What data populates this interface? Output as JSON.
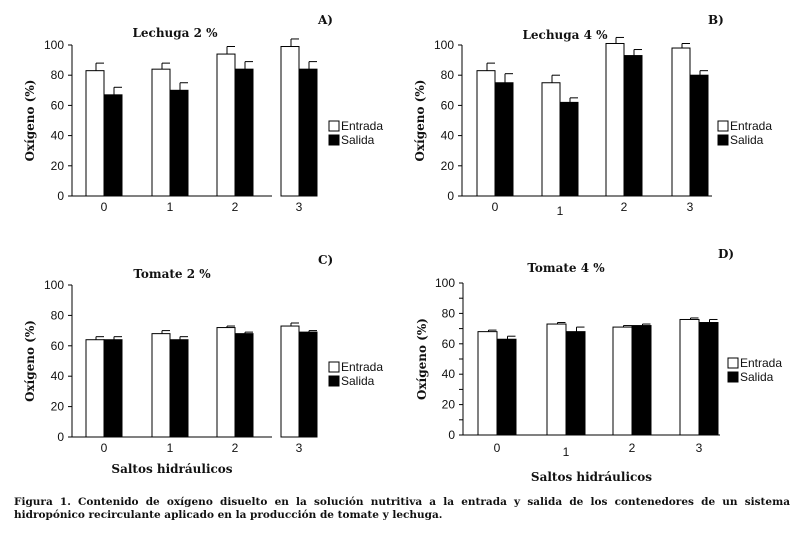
{
  "chart_data": [
    {
      "type": "bar",
      "title": "Lechuga 2 %",
      "panel_letter": "A)",
      "ylabel": "Oxígeno (%)",
      "xlabel": "",
      "ylim": [
        0,
        100
      ],
      "yticks": [
        0,
        20,
        40,
        60,
        80,
        100
      ],
      "categories": [
        "0",
        "1",
        "2",
        "3"
      ],
      "series": [
        {
          "name": "Entrada",
          "values": [
            83,
            84,
            94,
            99
          ],
          "errors": [
            5,
            4,
            5,
            5
          ],
          "color": "#ffffff"
        },
        {
          "name": "Salida",
          "values": [
            67,
            70,
            84,
            84
          ],
          "errors": [
            5,
            5,
            5,
            5
          ],
          "color": "#000000"
        }
      ],
      "legend": "right",
      "grid": false
    },
    {
      "type": "bar",
      "title": "Lechuga 4 %",
      "panel_letter": "B)",
      "ylabel": "Oxígeno (%)",
      "xlabel": "",
      "ylim": [
        0,
        100
      ],
      "yticks": [
        0,
        20,
        40,
        60,
        80,
        100
      ],
      "categories": [
        "0",
        "1",
        "2",
        "3"
      ],
      "series": [
        {
          "name": "Entrada",
          "values": [
            83,
            75,
            101,
            98
          ],
          "errors": [
            5,
            5,
            4,
            3
          ],
          "color": "#ffffff"
        },
        {
          "name": "Salida",
          "values": [
            75,
            62,
            93,
            80
          ],
          "errors": [
            6,
            3,
            4,
            3
          ],
          "color": "#000000"
        }
      ],
      "legend": "right",
      "grid": false
    },
    {
      "type": "bar",
      "title": "Tomate 2 %",
      "panel_letter": "C)",
      "ylabel": "Oxígeno (%)",
      "xlabel": "Saltos hidráulicos",
      "ylim": [
        0,
        100
      ],
      "yticks": [
        0,
        20,
        40,
        60,
        80,
        100
      ],
      "categories": [
        "0",
        "1",
        "2",
        "3"
      ],
      "series": [
        {
          "name": "Entrada",
          "values": [
            64,
            68,
            72,
            73
          ],
          "errors": [
            2,
            2,
            1,
            2
          ],
          "color": "#ffffff"
        },
        {
          "name": "Salida",
          "values": [
            64,
            64,
            68,
            69
          ],
          "errors": [
            2,
            2,
            1,
            1
          ],
          "color": "#000000"
        }
      ],
      "legend": "right",
      "grid": false
    },
    {
      "type": "bar",
      "title": "Tomate 4 %",
      "panel_letter": "D)",
      "ylabel": "Oxígeno (%)",
      "xlabel": "Saltos hidráulicos",
      "ylim": [
        0,
        100
      ],
      "yticks": [
        0,
        10,
        20,
        30,
        40,
        50,
        60,
        70,
        80,
        90,
        100
      ],
      "ytick_labels": [
        "0",
        "",
        "20",
        "",
        "40",
        "",
        "60",
        "",
        "80",
        "",
        "100"
      ],
      "categories": [
        "0",
        "1",
        "2",
        "3"
      ],
      "series": [
        {
          "name": "Entrada",
          "values": [
            68,
            73,
            71,
            76
          ],
          "errors": [
            1,
            1,
            1,
            1
          ],
          "color": "#ffffff"
        },
        {
          "name": "Salida",
          "values": [
            63,
            68,
            72,
            74
          ],
          "errors": [
            2,
            3,
            1,
            2
          ],
          "color": "#000000"
        }
      ],
      "legend": "right",
      "grid": false
    }
  ],
  "caption": "Figura 1. Contenido de oxígeno disuelto en la solución nutritiva a la entrada y salida de los contenedores de un sistema hidropónico recirculante aplicado en la producción de tomate y lechuga."
}
